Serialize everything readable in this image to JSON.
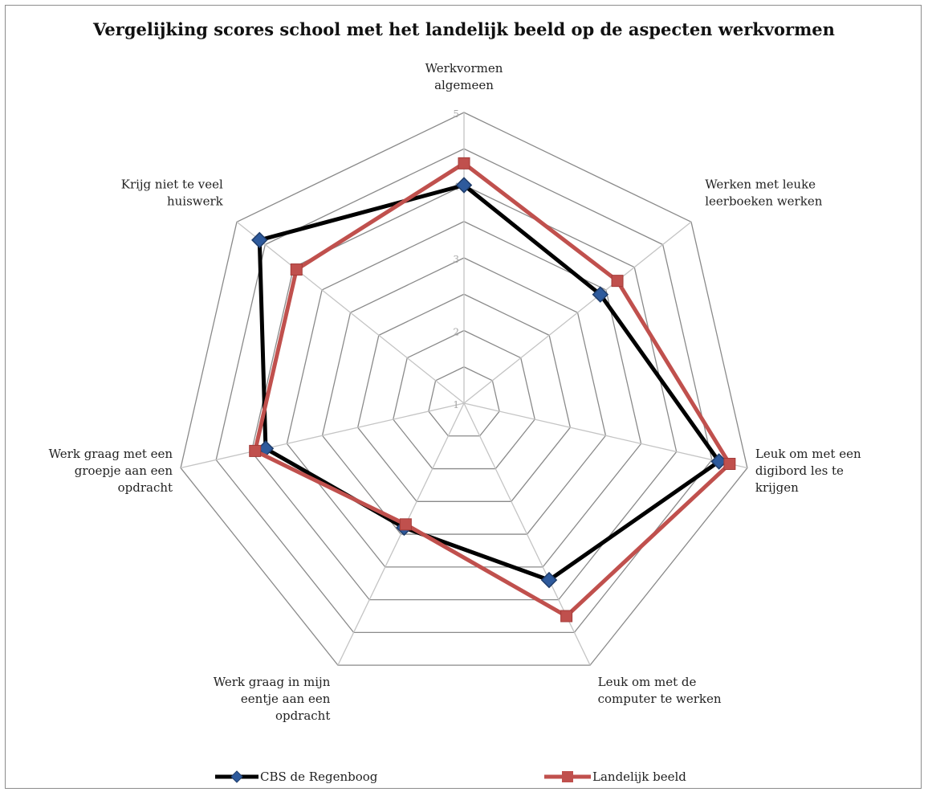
{
  "chart_data": {
    "type": "radar",
    "title": "Vergelijking scores school met het landelijk beeld op de aspecten werkvormen",
    "categories": [
      [
        "Werkvormen",
        "algemeen"
      ],
      [
        "Werken met leuke",
        "leerboeken werken"
      ],
      [
        "Leuk om met een",
        "digibord les te",
        "krijgen"
      ],
      [
        "Leuk om met de",
        "computer te werken"
      ],
      [
        "Werk graag in mijn",
        "eentje aan een",
        "opdracht"
      ],
      [
        "Werk graag met een",
        "groepje aan een",
        "opdracht"
      ],
      [
        "Krijg niet te veel",
        "huiswerk"
      ]
    ],
    "rlim": [
      1,
      5
    ],
    "ticks": [
      1,
      2,
      3,
      4,
      5
    ],
    "series": [
      {
        "name": "CBS de Regenboog",
        "values": [
          4.0,
          3.4,
          4.6,
          3.7,
          2.9,
          3.8,
          4.6
        ],
        "color": "#000000",
        "marker": "diamond",
        "marker_color": "#2e5a9c"
      },
      {
        "name": "Landelijk beeld",
        "values": [
          4.3,
          3.7,
          4.75,
          4.25,
          2.85,
          3.95,
          3.95
        ],
        "color": "#c0504d",
        "marker": "square",
        "marker_color": "#c0504d"
      }
    ],
    "grid": true,
    "legend": "bottom"
  }
}
